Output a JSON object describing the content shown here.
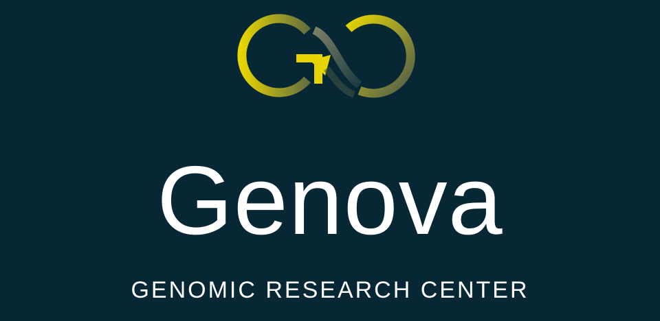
{
  "brand": {
    "name": "Genova",
    "tagline": "GENOMIC RESEARCH CENTER",
    "logo_icon": "go-infinity-arrow-icon"
  },
  "colors": {
    "background": "#062733",
    "text": "#ffffff",
    "accent_yellow": "#e6d500",
    "accent_muted": "#4e5c48"
  }
}
